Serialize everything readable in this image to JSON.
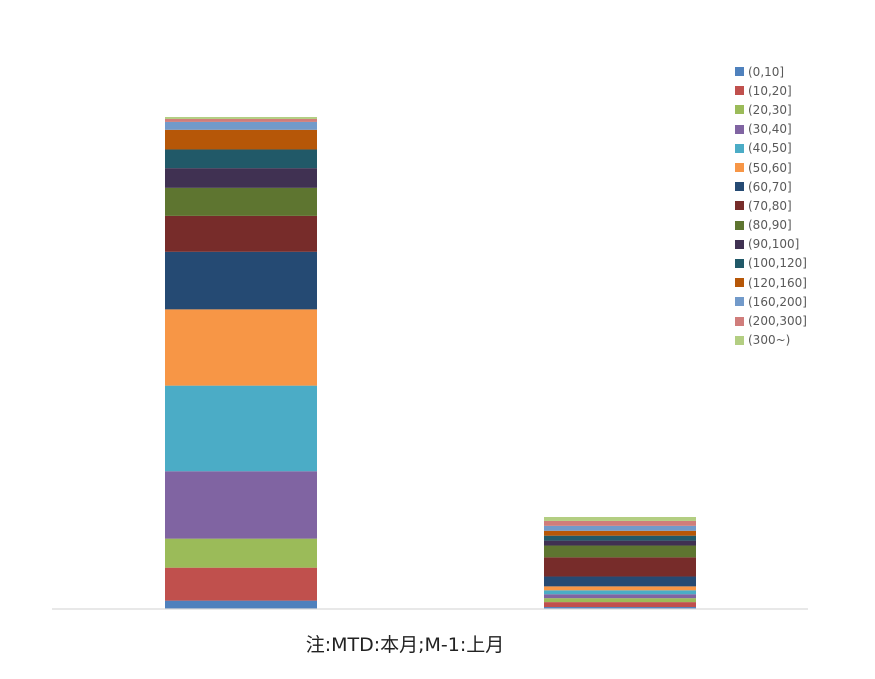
{
  "chart_data": {
    "type": "bar",
    "stacked": true,
    "categories": [
      "",
      ""
    ],
    "ylim": [
      0,
      100
    ],
    "legend_position": "right",
    "series": [
      {
        "name": "(0,10]",
        "color": "#4F81BD",
        "values": [
          1.7,
          0.4
        ]
      },
      {
        "name": "(10,20]",
        "color": "#C0504D",
        "values": [
          6.7,
          1.0
        ]
      },
      {
        "name": "(20,30]",
        "color": "#9BBB59",
        "values": [
          5.9,
          0.8
        ]
      },
      {
        "name": "(30,40]",
        "color": "#8064A2",
        "values": [
          13.7,
          0.8
        ]
      },
      {
        "name": "(40,50]",
        "color": "#4BACC6",
        "values": [
          17.4,
          0.8
        ]
      },
      {
        "name": "(50,60]",
        "color": "#F79646",
        "values": [
          15.5,
          0.8
        ]
      },
      {
        "name": "(60,70]",
        "color": "#254A73",
        "values": [
          11.7,
          2.0
        ]
      },
      {
        "name": "(70,80]",
        "color": "#772C2A",
        "values": [
          7.3,
          3.9
        ]
      },
      {
        "name": "(80,90]",
        "color": "#5E7530",
        "values": [
          5.7,
          2.4
        ]
      },
      {
        "name": "(90,100]",
        "color": "#403152",
        "values": [
          4.0,
          1.0
        ]
      },
      {
        "name": "(100,120]",
        "color": "#215968",
        "values": [
          3.8,
          1.0
        ]
      },
      {
        "name": "(120,160]",
        "color": "#B65708",
        "values": [
          4.0,
          1.0
        ]
      },
      {
        "name": "(160,200]",
        "color": "#729ACA",
        "values": [
          1.6,
          1.0
        ]
      },
      {
        "name": "(200,300]",
        "color": "#D07D7B",
        "values": [
          0.6,
          1.0
        ]
      },
      {
        "name": "(300~)",
        "color": "#B3CE82",
        "values": [
          0.4,
          0.8
        ]
      }
    ]
  },
  "note": "注:MTD:本月;M-1:上月"
}
